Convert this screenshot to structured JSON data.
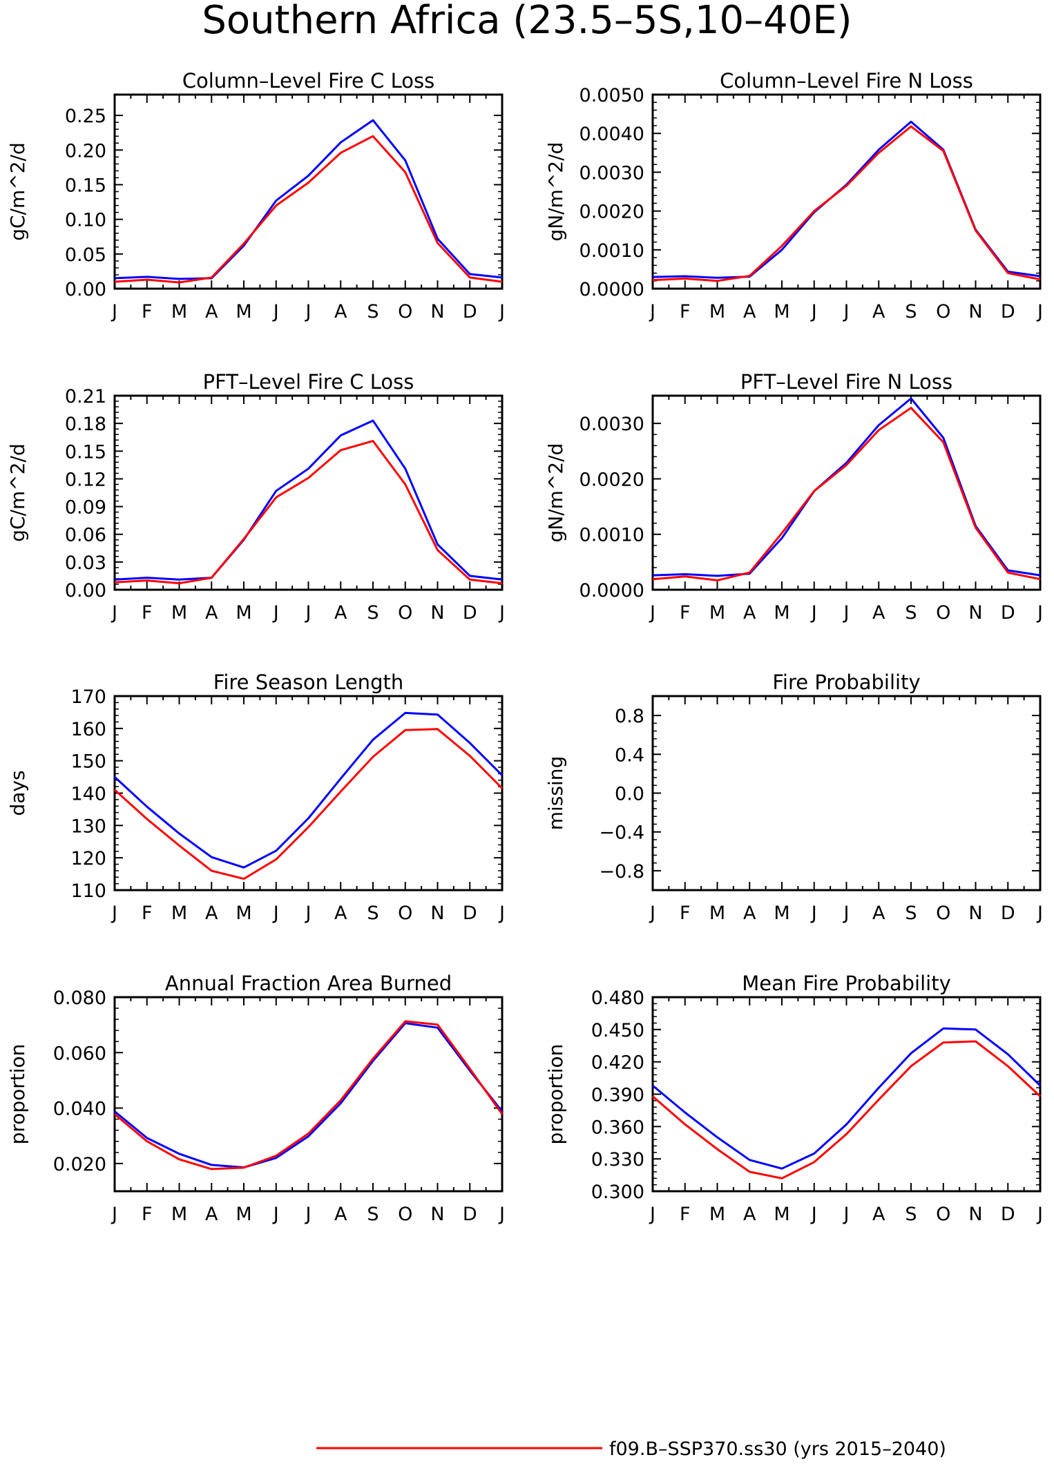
{
  "figure_title": "Southern Africa (23.5–5S,10–40E)",
  "month_labels": [
    "J",
    "F",
    "M",
    "A",
    "M",
    "J",
    "J",
    "A",
    "S",
    "O",
    "N",
    "D",
    "J"
  ],
  "colors": {
    "series_red": "#ff0000",
    "series_blue": "#0000ff",
    "axis": "#000000"
  },
  "legend": {
    "label": "f09.B–SSP370.ss30 (yrs 2015–2040)",
    "color": "#ff0000"
  },
  "chart_data": [
    {
      "type": "line",
      "title": "Column–Level Fire C Loss",
      "ylabel": "gC/m^2/d",
      "ylim": [
        0,
        0.28
      ],
      "yticks": [
        0,
        0.05,
        0.1,
        0.15,
        0.2,
        0.25
      ],
      "ytick_labels": [
        "0.00",
        "0.05",
        "0.10",
        "0.15",
        "0.20",
        "0.25"
      ],
      "series": [
        {
          "color": "#0000ff",
          "values": [
            0.015,
            0.017,
            0.014,
            0.015,
            0.062,
            0.127,
            0.163,
            0.211,
            0.243,
            0.185,
            0.072,
            0.021,
            0.016
          ]
        },
        {
          "color": "#ff0000",
          "values": [
            0.01,
            0.013,
            0.009,
            0.016,
            0.065,
            0.12,
            0.153,
            0.196,
            0.22,
            0.168,
            0.066,
            0.016,
            0.01
          ]
        }
      ]
    },
    {
      "type": "line",
      "title": "Column–Level Fire N Loss",
      "ylabel": "gN/m^2/d",
      "ylim": [
        0,
        0.005
      ],
      "yticks": [
        0,
        0.001,
        0.002,
        0.003,
        0.004,
        0.005
      ],
      "ytick_labels": [
        "0.0000",
        "0.0010",
        "0.0020",
        "0.0030",
        "0.0040",
        "0.0050"
      ],
      "series": [
        {
          "color": "#0000ff",
          "values": [
            0.0003,
            0.00032,
            0.00028,
            0.00031,
            0.001,
            0.00197,
            0.00268,
            0.00358,
            0.0043,
            0.00358,
            0.00152,
            0.00044,
            0.00032
          ]
        },
        {
          "color": "#ff0000",
          "values": [
            0.00022,
            0.00026,
            0.0002,
            0.00033,
            0.0011,
            0.002,
            0.00265,
            0.0035,
            0.00418,
            0.00355,
            0.0015,
            0.0004,
            0.00024
          ]
        }
      ]
    },
    {
      "type": "line",
      "title": "PFT–Level Fire C Loss",
      "ylabel": "gC/m^2/d",
      "ylim": [
        0,
        0.21
      ],
      "yticks": [
        0,
        0.03,
        0.06,
        0.09,
        0.12,
        0.15,
        0.18,
        0.21
      ],
      "ytick_labels": [
        "0.00",
        "0.03",
        "0.06",
        "0.09",
        "0.12",
        "0.15",
        "0.18",
        "0.21"
      ],
      "series": [
        {
          "color": "#0000ff",
          "values": [
            0.011,
            0.013,
            0.011,
            0.013,
            0.054,
            0.107,
            0.131,
            0.167,
            0.183,
            0.131,
            0.049,
            0.015,
            0.011
          ]
        },
        {
          "color": "#ff0000",
          "values": [
            0.008,
            0.01,
            0.007,
            0.013,
            0.055,
            0.1,
            0.121,
            0.151,
            0.161,
            0.114,
            0.043,
            0.011,
            0.007
          ]
        }
      ]
    },
    {
      "type": "line",
      "title": "PFT–Level Fire N Loss",
      "ylabel": "gN/m^2/d",
      "ylim": [
        0,
        0.0035
      ],
      "yticks": [
        0,
        0.001,
        0.002,
        0.003
      ],
      "ytick_labels": [
        "0.0000",
        "0.0010",
        "0.0020",
        "0.0030"
      ],
      "series": [
        {
          "color": "#0000ff",
          "values": [
            0.00026,
            0.00028,
            0.00025,
            0.00029,
            0.00093,
            0.00178,
            0.00229,
            0.00297,
            0.00345,
            0.00274,
            0.00115,
            0.00035,
            0.00026
          ]
        },
        {
          "color": "#ff0000",
          "values": [
            0.00019,
            0.00024,
            0.00017,
            0.00031,
            0.00102,
            0.00178,
            0.00225,
            0.00288,
            0.00328,
            0.00266,
            0.00112,
            0.00031,
            0.00019
          ]
        }
      ]
    },
    {
      "type": "line",
      "title": "Fire Season Length",
      "ylabel": "days",
      "ylim": [
        110,
        170
      ],
      "yticks": [
        110,
        120,
        130,
        140,
        150,
        160,
        170
      ],
      "ytick_labels": [
        "110",
        "120",
        "130",
        "140",
        "150",
        "160",
        "170"
      ],
      "series": [
        {
          "color": "#0000ff",
          "values": [
            145.0,
            135.8,
            127.5,
            120.2,
            117.0,
            122.2,
            132.2,
            144.5,
            156.5,
            164.8,
            164.3,
            155.5,
            145.5
          ]
        },
        {
          "color": "#ff0000",
          "values": [
            141.0,
            132.0,
            123.8,
            116.0,
            113.5,
            119.5,
            129.5,
            140.5,
            151.2,
            159.5,
            159.8,
            151.5,
            141.5
          ]
        }
      ]
    },
    {
      "type": "line",
      "title": "Fire Probability",
      "ylabel": "missing",
      "ylim": [
        -1,
        1
      ],
      "yticks": [
        -0.8,
        -0.4,
        0.0,
        0.4,
        0.8
      ],
      "ytick_labels": [
        "−0.8",
        "−0.4",
        "0.0",
        "0.4",
        "0.8"
      ],
      "series": []
    },
    {
      "type": "line",
      "title": "Annual Fraction Area Burned",
      "ylabel": "proportion",
      "ylim": [
        0.01,
        0.08
      ],
      "yticks": [
        0.02,
        0.04,
        0.06,
        0.08
      ],
      "ytick_labels": [
        "0.020",
        "0.040",
        "0.060",
        "0.080"
      ],
      "series": [
        {
          "color": "#0000ff",
          "values": [
            0.0388,
            0.0292,
            0.0235,
            0.0195,
            0.0186,
            0.022,
            0.0298,
            0.0417,
            0.057,
            0.0706,
            0.069,
            0.0535,
            0.0388
          ]
        },
        {
          "color": "#ff0000",
          "values": [
            0.0378,
            0.028,
            0.0215,
            0.018,
            0.0185,
            0.0228,
            0.0308,
            0.0428,
            0.0578,
            0.0713,
            0.0701,
            0.0542,
            0.0378
          ]
        }
      ]
    },
    {
      "type": "line",
      "title": "Mean Fire Probability",
      "ylabel": "proportion",
      "ylim": [
        0.3,
        0.48
      ],
      "yticks": [
        0.3,
        0.33,
        0.36,
        0.39,
        0.42,
        0.45,
        0.48
      ],
      "ytick_labels": [
        "0.300",
        "0.330",
        "0.360",
        "0.390",
        "0.420",
        "0.450",
        "0.480"
      ],
      "series": [
        {
          "color": "#0000ff",
          "values": [
            0.398,
            0.373,
            0.35,
            0.329,
            0.321,
            0.335,
            0.362,
            0.396,
            0.428,
            0.451,
            0.45,
            0.427,
            0.398
          ]
        },
        {
          "color": "#ff0000",
          "values": [
            0.388,
            0.362,
            0.339,
            0.318,
            0.312,
            0.327,
            0.353,
            0.385,
            0.416,
            0.438,
            0.439,
            0.416,
            0.388
          ]
        }
      ]
    }
  ]
}
